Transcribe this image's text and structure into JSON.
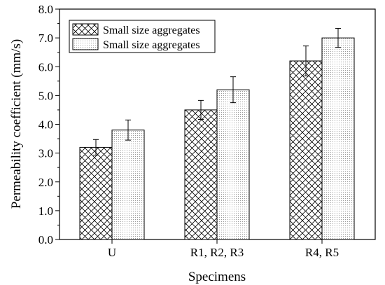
{
  "chart_data": {
    "type": "bar",
    "title": "",
    "xlabel": "Specimens",
    "ylabel": "Permeability coefficient (mm/s)",
    "categories": [
      "U",
      "R1, R2, R3",
      "R4, R5"
    ],
    "ylim": [
      0.0,
      8.0
    ],
    "yticks": [
      "0.0",
      "1.0",
      "2.0",
      "3.0",
      "4.0",
      "5.0",
      "6.0",
      "7.0",
      "8.0"
    ],
    "series": [
      {
        "name": "Small size aggregates",
        "pattern": "crosshatch",
        "values": [
          3.2,
          4.5,
          6.2
        ],
        "errors": [
          0.27,
          0.33,
          0.52
        ]
      },
      {
        "name": "Small size aggregates",
        "pattern": "dots",
        "values": [
          3.8,
          5.2,
          7.0
        ],
        "errors": [
          0.35,
          0.45,
          0.33
        ]
      }
    ],
    "legend_position": "top-left",
    "grid": false,
    "colors": {
      "bar_stroke": "#000000",
      "background": "#ffffff"
    }
  }
}
